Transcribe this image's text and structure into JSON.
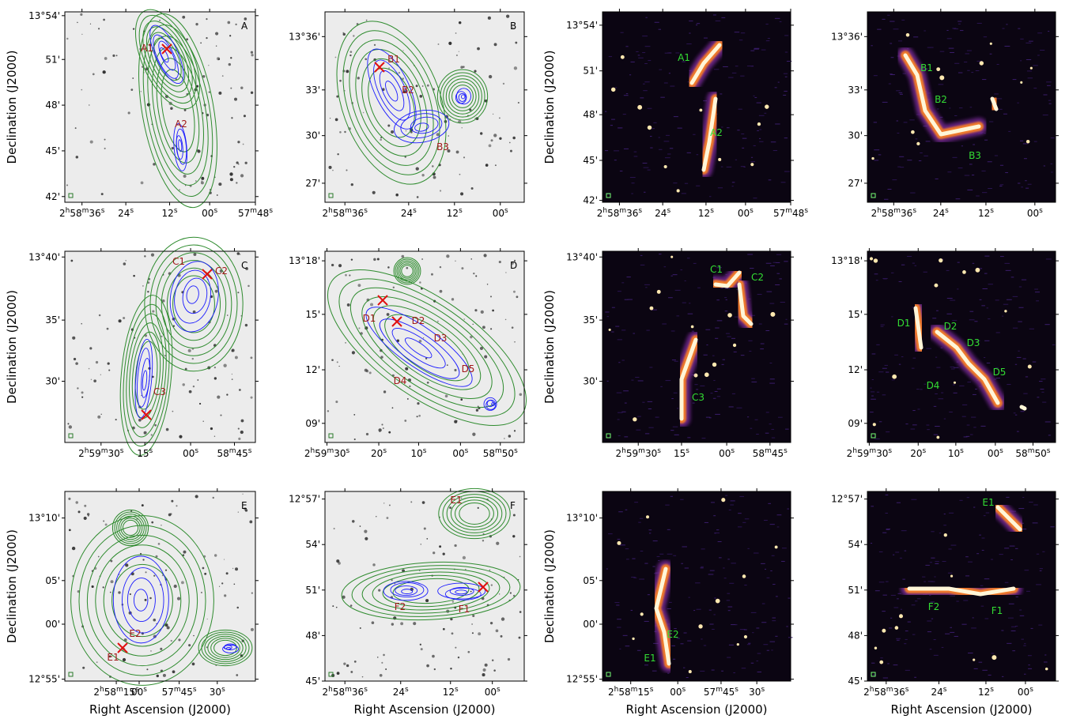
{
  "ylabel": "Declination (J2000)",
  "xlabel": "Right Ascension (J2000)",
  "panels": [
    {
      "letter": "A",
      "yticks": [
        "13°54'",
        "51'",
        "48'",
        "45'",
        "42'"
      ],
      "xticks": [
        [
          "2",
          "h",
          "58",
          "m",
          "36",
          "s"
        ],
        [
          "24",
          "s"
        ],
        [
          "12",
          "s"
        ],
        [
          "00",
          "s"
        ],
        [
          "57",
          "m",
          "48",
          "s"
        ]
      ],
      "labels": [
        "A1",
        "A2"
      ]
    },
    {
      "letter": "B",
      "yticks": [
        "13°36'",
        "33'",
        "30'",
        "27'"
      ],
      "xticks": [
        [
          "2",
          "h",
          "58",
          "m",
          "36",
          "s"
        ],
        [
          "24",
          "s"
        ],
        [
          "12",
          "s"
        ],
        [
          "00",
          "s"
        ]
      ],
      "labels": [
        "B1",
        "B2",
        "B3"
      ]
    },
    {
      "yticks": [
        "13°54'",
        "51'",
        "48'",
        "45'",
        "42'"
      ],
      "xticks": [
        [
          "2",
          "h",
          "58",
          "m",
          "36",
          "s"
        ],
        [
          "24",
          "s"
        ],
        [
          "12",
          "s"
        ],
        [
          "00",
          "s"
        ],
        [
          "57",
          "m",
          "48",
          "s"
        ]
      ],
      "labels": [
        "A1",
        "A2"
      ]
    },
    {
      "yticks": [
        "13°36'",
        "33'",
        "30'",
        "27'"
      ],
      "xticks": [
        [
          "2",
          "h",
          "58",
          "m",
          "36",
          "s"
        ],
        [
          "24",
          "s"
        ],
        [
          "12",
          "s"
        ],
        [
          "00",
          "s"
        ]
      ],
      "labels": [
        "B1",
        "B2",
        "B3"
      ]
    },
    {
      "letter": "C",
      "yticks": [
        "13°40'",
        "35'",
        "30'"
      ],
      "xticks": [
        [
          "2",
          "h",
          "59",
          "m",
          "30",
          "s"
        ],
        [
          "15",
          "s"
        ],
        [
          "00",
          "s"
        ],
        [
          "58",
          "m",
          "45",
          "s"
        ]
      ],
      "labels": [
        "C1",
        "C2",
        "C3"
      ]
    },
    {
      "letter": "D",
      "yticks": [
        "13°18'",
        "15'",
        "12'",
        "09'"
      ],
      "xticks": [
        [
          "2",
          "h",
          "59",
          "m",
          "30",
          "s"
        ],
        [
          "20",
          "s"
        ],
        [
          "10",
          "s"
        ],
        [
          "00",
          "s"
        ],
        [
          "58",
          "m",
          "50",
          "s"
        ]
      ],
      "labels": [
        "D1",
        "D2",
        "D3",
        "D4",
        "D5"
      ]
    },
    {
      "yticks": [
        "13°40'",
        "35'",
        "30'"
      ],
      "xticks": [
        [
          "2",
          "h",
          "59",
          "m",
          "30",
          "s"
        ],
        [
          "15",
          "s"
        ],
        [
          "00",
          "s"
        ],
        [
          "58",
          "m",
          "45",
          "s"
        ]
      ],
      "labels": [
        "C1",
        "C2",
        "C3"
      ]
    },
    {
      "yticks": [
        "13°18'",
        "15'",
        "12'",
        "09'"
      ],
      "xticks": [
        [
          "2",
          "h",
          "59",
          "m",
          "30",
          "s"
        ],
        [
          "20",
          "s"
        ],
        [
          "10",
          "s"
        ],
        [
          "00",
          "s"
        ],
        [
          "58",
          "m",
          "50",
          "s"
        ]
      ],
      "labels": [
        "D1",
        "D2",
        "D3",
        "D4",
        "D5"
      ]
    },
    {
      "letter": "E",
      "yticks": [
        "13°10'",
        "05'",
        "00'",
        "12°55'"
      ],
      "xticks": [
        [
          "2",
          "h",
          "58",
          "m",
          "15",
          "s"
        ],
        [
          "00",
          "s"
        ],
        [
          "57",
          "m",
          "45",
          "s"
        ],
        [
          "30",
          "s"
        ]
      ],
      "labels": [
        "E1",
        "E2"
      ]
    },
    {
      "letter": "F",
      "yticks": [
        "12°57'",
        "54'",
        "51'",
        "48'",
        "45'"
      ],
      "xticks": [
        [
          "2",
          "h",
          "58",
          "m",
          "36",
          "s"
        ],
        [
          "24",
          "s"
        ],
        [
          "12",
          "s"
        ],
        [
          "00",
          "s"
        ]
      ],
      "labels": [
        "E1",
        "F1",
        "F2"
      ]
    },
    {
      "yticks": [
        "13°10'",
        "05'",
        "00'",
        "12°55'"
      ],
      "xticks": [
        [
          "2",
          "h",
          "58",
          "m",
          "15",
          "s"
        ],
        [
          "00",
          "s"
        ],
        [
          "57",
          "m",
          "45",
          "s"
        ],
        [
          "30",
          "s"
        ]
      ],
      "labels": [
        "E2",
        "E1"
      ]
    },
    {
      "yticks": [
        "12°57'",
        "54'",
        "51'",
        "48'",
        "45'"
      ],
      "xticks": [
        [
          "2",
          "h",
          "58",
          "m",
          "36",
          "s"
        ],
        [
          "24",
          "s"
        ],
        [
          "12",
          "s"
        ],
        [
          "00",
          "s"
        ]
      ],
      "labels": [
        "E1",
        "F1",
        "F2"
      ]
    }
  ]
}
